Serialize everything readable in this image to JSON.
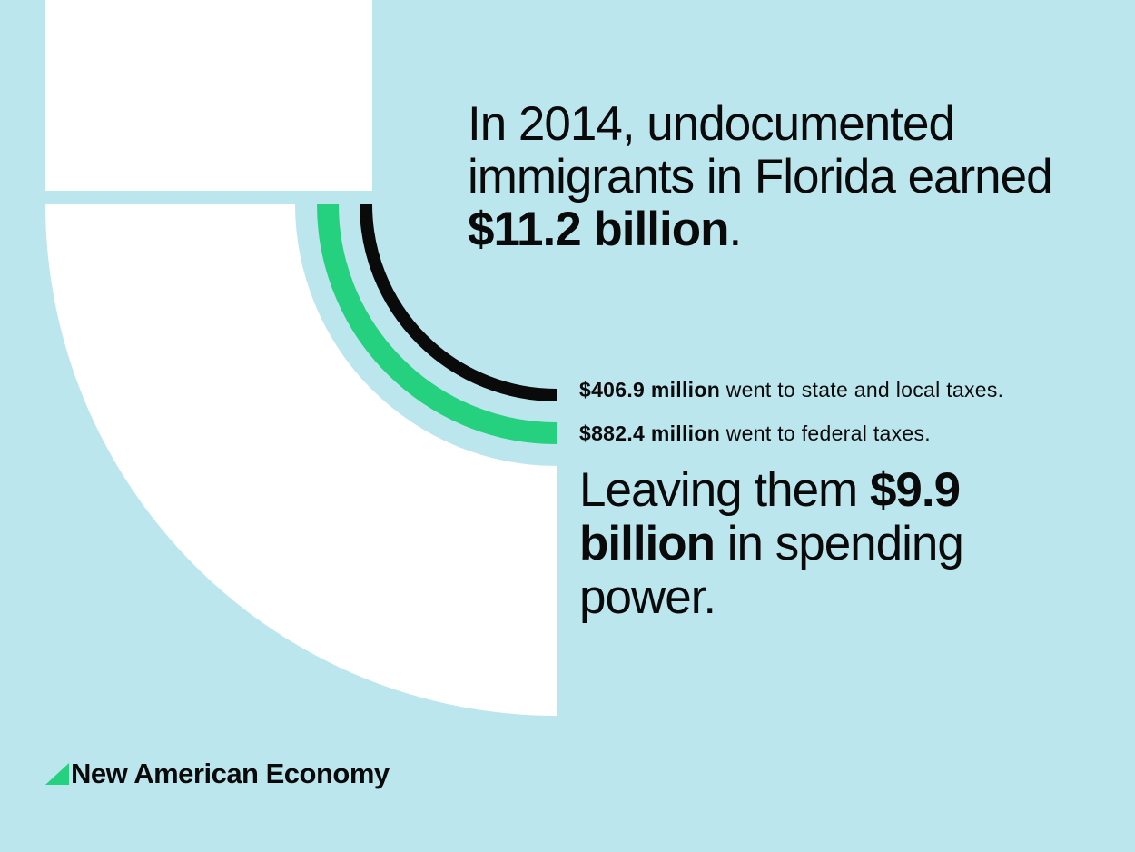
{
  "headline": {
    "prefix": "In 2014, undocumented immigrants in Florida earned ",
    "amount": "$11.2 billion",
    "suffix": "."
  },
  "taxes": [
    {
      "amount": "$406.9 million",
      "label": " went to state and local taxes.",
      "color": "#0a0a0a"
    },
    {
      "amount": "$882.4 million",
      "label": " went to federal taxes.",
      "color": "#25d07f"
    }
  ],
  "spending": {
    "prefix": "Leaving them ",
    "amount": "$9.9 billion",
    "suffix": " in spending power."
  },
  "brand": {
    "name": "New American Economy",
    "icon": "triangle-mark-icon",
    "accent": "#25d07f"
  },
  "colors": {
    "background": "#bce6ed",
    "panel": "#ffffff"
  }
}
